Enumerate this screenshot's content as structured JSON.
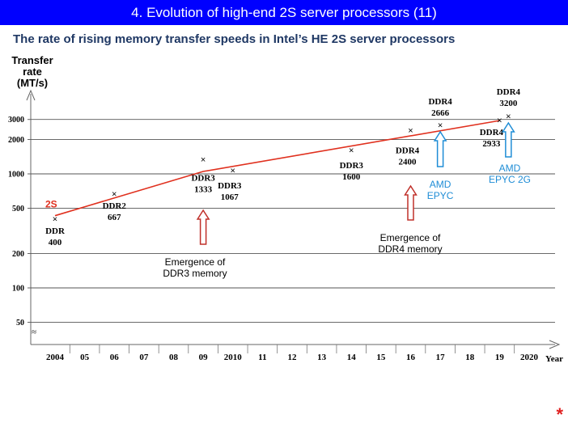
{
  "header": {
    "title": "4. Evolution of high-end 2S server processors (11)"
  },
  "subtitle": "The rate of rising memory transfer speeds in Intel’s HE 2S server processors",
  "footer_mark": "*",
  "chart_data": {
    "type": "line",
    "title": "",
    "ylabel": [
      "Transfer",
      "rate",
      "(MT/s)"
    ],
    "xlabel": "Year",
    "y_scale": "log",
    "ylim": [
      50,
      3200
    ],
    "y_ticks": [
      {
        "value": 3000,
        "label": "3000"
      },
      {
        "value": 2000,
        "label": "2000"
      },
      {
        "value": 1000,
        "label": "1000"
      },
      {
        "value": 500,
        "label": "500"
      },
      {
        "value": 200,
        "label": "200"
      },
      {
        "value": 100,
        "label": "100"
      },
      {
        "value": 50,
        "label": "50"
      }
    ],
    "axis_break": "≈",
    "x_ticks": [
      {
        "value": 2004,
        "label": "2004"
      },
      {
        "value": 2005,
        "label": "05"
      },
      {
        "value": 2006,
        "label": "06"
      },
      {
        "value": 2007,
        "label": "07"
      },
      {
        "value": 2008,
        "label": "08"
      },
      {
        "value": 2009,
        "label": "09"
      },
      {
        "value": 2010,
        "label": "2010"
      },
      {
        "value": 2011,
        "label": "11"
      },
      {
        "value": 2012,
        "label": "12"
      },
      {
        "value": 2013,
        "label": "13"
      },
      {
        "value": 2014,
        "label": "14"
      },
      {
        "value": 2015,
        "label": "15"
      },
      {
        "value": 2016,
        "label": "16"
      },
      {
        "value": 2017,
        "label": "17"
      },
      {
        "value": 2018,
        "label": "18"
      },
      {
        "value": 2019,
        "label": "19"
      },
      {
        "value": 2020,
        "label": "2020"
      }
    ],
    "series": [
      {
        "name": "2S",
        "color": "#e0301e",
        "x": [
          2004,
          2009,
          2019
        ],
        "y": [
          430,
          1050,
          2933
        ]
      }
    ],
    "points": [
      {
        "x": 2004,
        "y": 400,
        "label": [
          "DDR",
          "400"
        ],
        "dx": 0,
        "dy": 18
      },
      {
        "x": 2006,
        "y": 667,
        "label": [
          "DDR2",
          "667"
        ],
        "dx": 0,
        "dy": 18
      },
      {
        "x": 2009,
        "y": 1333,
        "label": [
          "DDR3",
          "1333"
        ],
        "dx": 0,
        "dy": 26
      },
      {
        "x": 2010,
        "y": 1067,
        "label": [
          "DDR3",
          "1067"
        ],
        "dx": -4,
        "dy": 22
      },
      {
        "x": 2014,
        "y": 1600,
        "label": [
          "DDR3",
          "1600"
        ],
        "dx": 0,
        "dy": 22
      },
      {
        "x": 2016,
        "y": 2400,
        "label": [
          "DDR4",
          "2400"
        ],
        "dx": -4,
        "dy": 28
      },
      {
        "x": 2017,
        "y": 2666,
        "label": [
          "DDR4",
          "2666"
        ],
        "dx": 0,
        "dy": -26
      },
      {
        "x": 2019,
        "y": 2933,
        "label": [
          "DDR4",
          "2933"
        ],
        "dx": -10,
        "dy": 18
      },
      {
        "x": 2019.3,
        "y": 3200,
        "label": [
          "DDR4",
          "3200"
        ],
        "dx": 0,
        "dy": -27
      }
    ],
    "annotations": [
      {
        "text": [
          "Emergence of",
          "DDR3 memory"
        ],
        "color": "#c0302a",
        "arrow_x": 2009
      },
      {
        "text": [
          "Emergence of",
          "DDR4 memory"
        ],
        "color": "#c0302a",
        "arrow_x": 2016
      },
      {
        "text": [
          "AMD",
          "EPYC"
        ],
        "color": "#1f8dd6",
        "arrow_x": 2017
      },
      {
        "text": [
          "AMD",
          "EPYC 2G"
        ],
        "color": "#1f8dd6",
        "arrow_x": 2019.3
      }
    ]
  }
}
